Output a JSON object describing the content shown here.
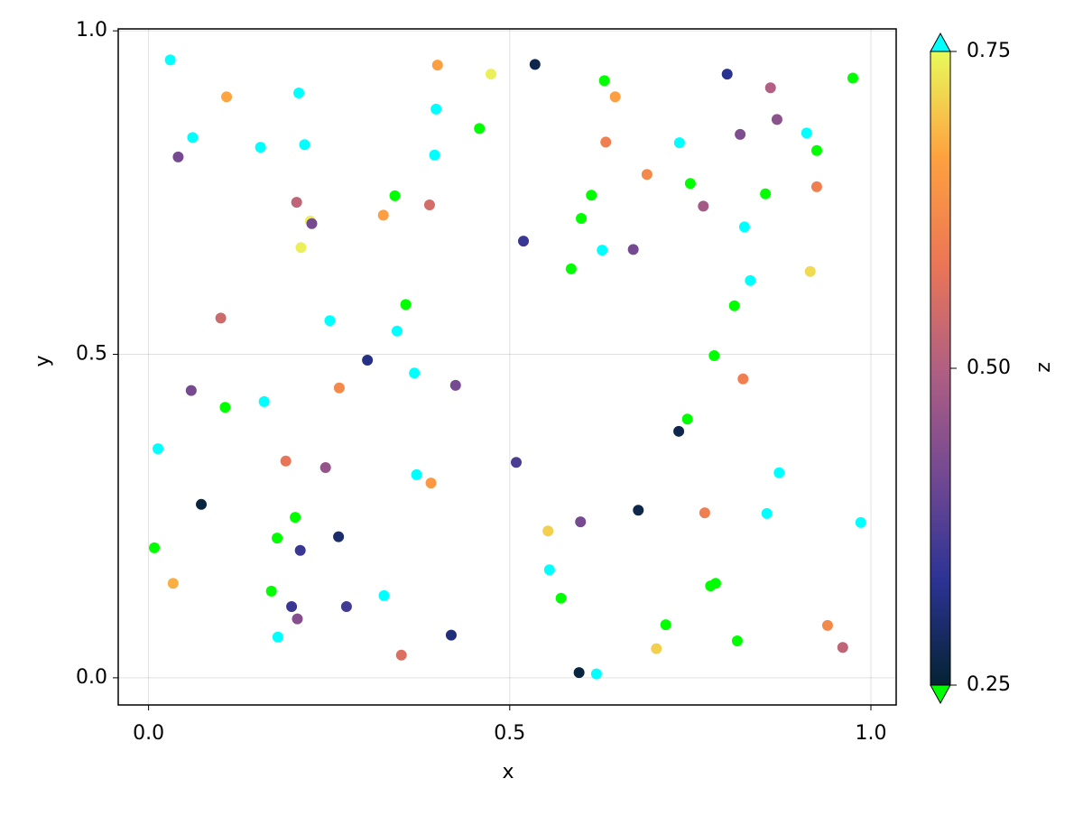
{
  "chart_data": {
    "type": "scatter",
    "xlabel": "x",
    "ylabel": "y",
    "colorbar_label": "z",
    "x": [
      0.03,
      0.108,
      0.208,
      0.061,
      0.041,
      0.155,
      0.216,
      0.205,
      0.224,
      0.226,
      0.211,
      0.4,
      0.474,
      0.398,
      0.458,
      0.396,
      0.341,
      0.325,
      0.389,
      0.535,
      0.631,
      0.646,
      0.633,
      0.735,
      0.801,
      0.861,
      0.87,
      0.819,
      0.911,
      0.975,
      0.925,
      0.69,
      0.75,
      0.613,
      0.854,
      0.925,
      0.768,
      0.599,
      0.825,
      0.519,
      0.628,
      0.671,
      0.585,
      0.916,
      0.833,
      0.811,
      0.1,
      0.251,
      0.356,
      0.344,
      0.303,
      0.368,
      0.425,
      0.059,
      0.16,
      0.106,
      0.264,
      0.783,
      0.823,
      0.746,
      0.734,
      0.013,
      0.19,
      0.245,
      0.371,
      0.391,
      0.509,
      0.873,
      0.073,
      0.203,
      0.178,
      0.263,
      0.21,
      0.008,
      0.553,
      0.598,
      0.678,
      0.77,
      0.856,
      0.986,
      0.034,
      0.17,
      0.198,
      0.206,
      0.274,
      0.326,
      0.179,
      0.35,
      0.419,
      0.555,
      0.571,
      0.778,
      0.785,
      0.716,
      0.815,
      0.94,
      0.961,
      0.703,
      0.596,
      0.62
    ],
    "y": [
      0.955,
      0.898,
      0.904,
      0.835,
      0.805,
      0.82,
      0.824,
      0.735,
      0.706,
      0.702,
      0.665,
      0.947,
      0.933,
      0.879,
      0.849,
      0.808,
      0.745,
      0.715,
      0.731,
      0.948,
      0.923,
      0.898,
      0.828,
      0.827,
      0.933,
      0.912,
      0.863,
      0.84,
      0.842,
      0.927,
      0.815,
      0.778,
      0.764,
      0.746,
      0.748,
      0.759,
      0.729,
      0.71,
      0.697,
      0.675,
      0.661,
      0.662,
      0.632,
      0.628,
      0.614,
      0.575,
      0.556,
      0.552,
      0.577,
      0.536,
      0.491,
      0.471,
      0.452,
      0.444,
      0.427,
      0.418,
      0.448,
      0.498,
      0.462,
      0.4,
      0.381,
      0.354,
      0.335,
      0.325,
      0.314,
      0.301,
      0.333,
      0.317,
      0.268,
      0.248,
      0.216,
      0.218,
      0.197,
      0.201,
      0.227,
      0.241,
      0.259,
      0.255,
      0.254,
      0.24,
      0.146,
      0.134,
      0.11,
      0.091,
      0.11,
      0.127,
      0.063,
      0.035,
      0.066,
      0.167,
      0.123,
      0.142,
      0.146,
      0.082,
      0.057,
      0.081,
      0.047,
      0.045,
      0.008,
      0.006
    ],
    "z": [
      0.8,
      0.67,
      0.8,
      0.8,
      0.42,
      0.8,
      0.8,
      0.52,
      0.74,
      0.42,
      0.74,
      0.66,
      0.74,
      0.8,
      0.2,
      0.8,
      0.2,
      0.66,
      0.55,
      0.27,
      0.2,
      0.66,
      0.6,
      0.8,
      0.33,
      0.5,
      0.45,
      0.43,
      0.8,
      0.2,
      0.2,
      0.62,
      0.2,
      0.2,
      0.2,
      0.6,
      0.48,
      0.2,
      0.8,
      0.35,
      0.8,
      0.42,
      0.2,
      0.72,
      0.8,
      0.2,
      0.54,
      0.8,
      0.2,
      0.8,
      0.32,
      0.8,
      0.42,
      0.42,
      0.8,
      0.2,
      0.62,
      0.2,
      0.6,
      0.2,
      0.27,
      0.8,
      0.58,
      0.46,
      0.8,
      0.65,
      0.37,
      0.8,
      0.26,
      0.2,
      0.2,
      0.3,
      0.35,
      0.2,
      0.71,
      0.42,
      0.27,
      0.6,
      0.8,
      0.8,
      0.68,
      0.2,
      0.35,
      0.44,
      0.36,
      0.8,
      0.8,
      0.56,
      0.31,
      0.8,
      0.2,
      0.2,
      0.2,
      0.2,
      0.2,
      0.62,
      0.52,
      0.71,
      0.26,
      0.8
    ],
    "xlim": [
      -0.042,
      1.035
    ],
    "ylim": [
      -0.042,
      1.003
    ],
    "xticks": [
      {
        "value": 0,
        "label": "0.0"
      },
      0.5,
      {
        "value": 1,
        "label": "1.0"
      }
    ],
    "yticks": [
      {
        "value": 0,
        "label": "0.0"
      },
      0.5,
      {
        "value": 1,
        "label": "1.0"
      }
    ],
    "grid": true,
    "colorrange": [
      0.25,
      0.75
    ],
    "colorbar_ticks": [
      0.25,
      {
        "value": 0.5,
        "label": "0.50"
      },
      0.75
    ],
    "colormap": [
      "#042333",
      "#2c3395",
      "#744992",
      "#b15f82",
      "#eb7655",
      "#fea13f",
      "#e8fa5b"
    ],
    "lowclip": "#00ff00",
    "highclip": "#00ffff"
  }
}
